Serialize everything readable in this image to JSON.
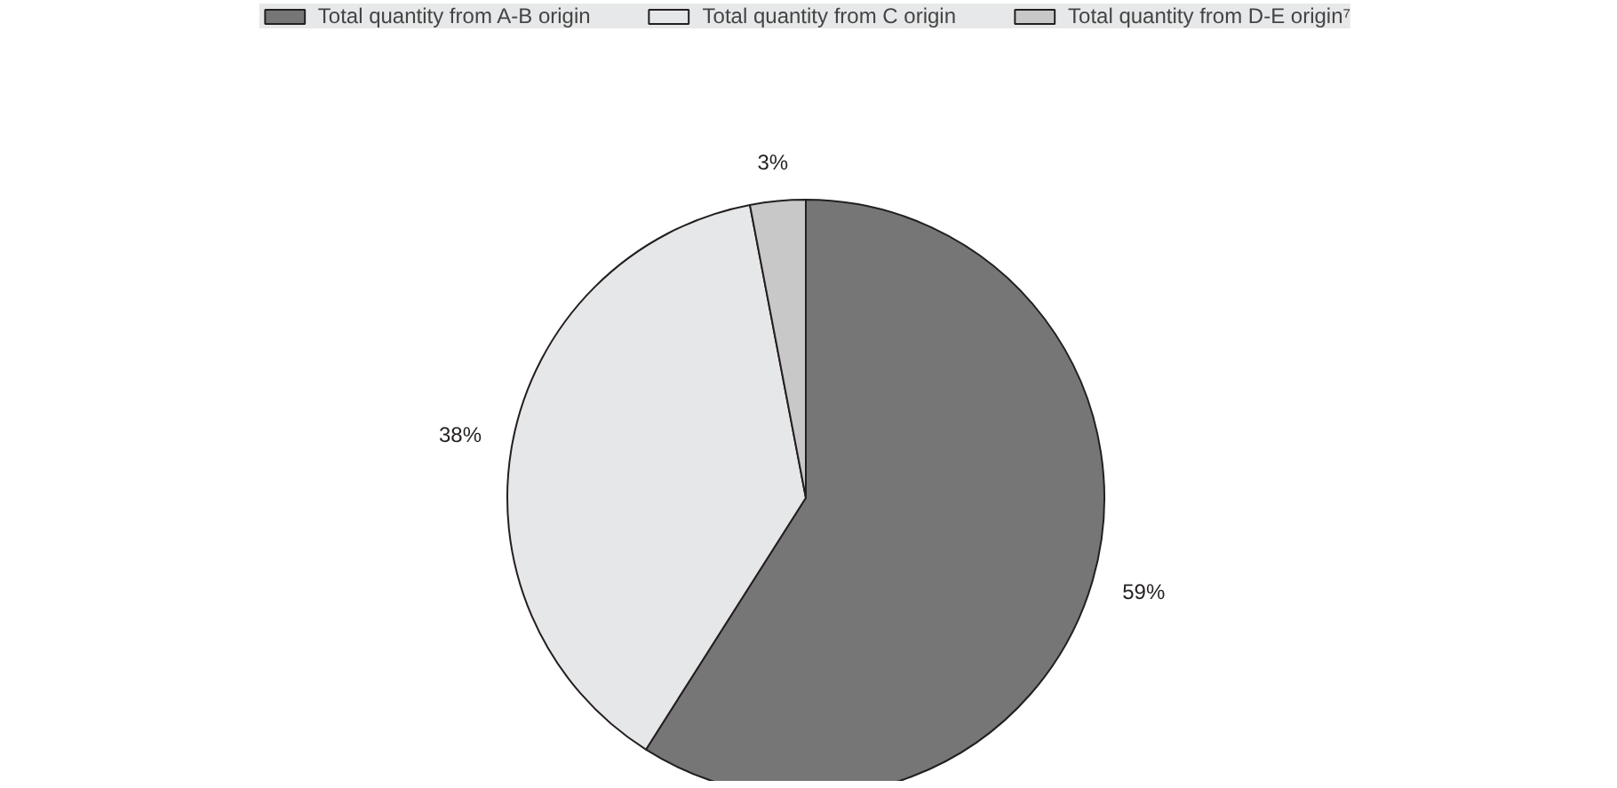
{
  "chart_data": {
    "type": "pie",
    "categories": [
      "Total quantity from A-B origin",
      "Total quantity from C origin",
      "Total quantity from D-E origin⁷"
    ],
    "values": [
      59,
      38,
      3
    ],
    "colors": [
      "#767676",
      "#e6e7e8",
      "#c8c8c8"
    ],
    "value_labels": [
      "59%",
      "38%",
      "3%"
    ],
    "legend": "top"
  }
}
